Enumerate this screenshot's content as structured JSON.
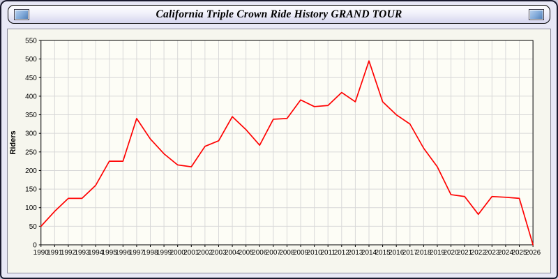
{
  "header": {
    "title": "California Triple Crown Ride History GRAND TOUR",
    "left_icon": "image-thumbnail-icon",
    "right_icon": "image-thumbnail-icon"
  },
  "colors": {
    "page_background": "#e8e8f6",
    "header_gradient_top": "#ffffff",
    "header_gradient_bottom": "#d6d6ee",
    "plot_background": "#fdfdf6",
    "grid": "#d8d8d8",
    "axis": "#000000",
    "line": "#ff0000"
  },
  "chart_data": {
    "type": "line",
    "title": "California Triple Crown Ride History GRAND TOUR",
    "xlabel": "",
    "ylabel": "Riders",
    "ylim": [
      0,
      550
    ],
    "ytick_step": 50,
    "grid": true,
    "legend_position": "none",
    "x": [
      1990,
      1991,
      1992,
      1993,
      1994,
      1995,
      1996,
      1997,
      1998,
      1999,
      2000,
      2001,
      2002,
      2003,
      2004,
      2005,
      2006,
      2007,
      2008,
      2009,
      2010,
      2011,
      2012,
      2013,
      2014,
      2015,
      2016,
      2017,
      2018,
      2019,
      2020,
      2021,
      2022,
      2023,
      2024,
      2025,
      2026
    ],
    "series": [
      {
        "name": "Riders",
        "color": "#ff0000",
        "values": [
          50,
          90,
          125,
          125,
          160,
          225,
          225,
          340,
          285,
          245,
          215,
          210,
          265,
          280,
          345,
          310,
          268,
          338,
          340,
          390,
          372,
          375,
          410,
          385,
          495,
          385,
          350,
          325,
          260,
          210,
          135,
          130,
          82,
          130,
          128,
          125,
          0
        ]
      }
    ]
  }
}
